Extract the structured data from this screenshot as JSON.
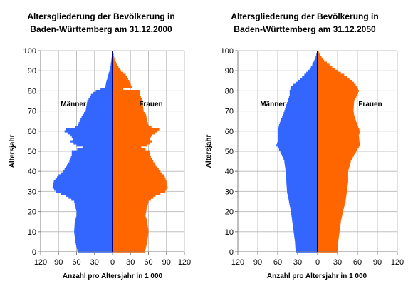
{
  "colors": {
    "men": "#3366ff",
    "women": "#ff6600",
    "axis": "#000080",
    "grid": "#c0c0c0"
  },
  "chart_data": [
    {
      "type": "bar",
      "orientation": "horizontal-pyramid",
      "title_line1": "Altersgliederung der Bevölkerung in",
      "title_line2": "Baden-Württemberg am 31.12.2000",
      "xlabel": "Anzahl pro Altersjahr in 1 000",
      "ylabel": "Altersjahr",
      "men_label": "Männer",
      "women_label": "Frauen",
      "xlim": [
        -120,
        120
      ],
      "ylim": [
        0,
        100
      ],
      "xticks": [
        120,
        90,
        60,
        30,
        0,
        30,
        60,
        90,
        120
      ],
      "yticks": [
        0,
        10,
        20,
        30,
        40,
        50,
        60,
        70,
        80,
        90,
        100
      ],
      "grid": true,
      "age_anchors": [
        0,
        5,
        10,
        15,
        18,
        20,
        25,
        28,
        30,
        32,
        35,
        38,
        40,
        42,
        45,
        48,
        50,
        52,
        53,
        54,
        55,
        56,
        58,
        60,
        61,
        62,
        63,
        65,
        68,
        70,
        75,
        78,
        80,
        81,
        82,
        85,
        88,
        90,
        93,
        95,
        98,
        100
      ],
      "men_values": [
        58,
        62,
        64,
        63,
        60,
        60,
        64,
        78,
        95,
        100,
        98,
        90,
        82,
        78,
        72,
        68,
        68,
        50,
        60,
        65,
        70,
        66,
        70,
        80,
        78,
        62,
        58,
        55,
        50,
        45,
        42,
        36,
        28,
        20,
        12,
        10,
        7,
        5,
        3,
        2,
        1,
        0
      ],
      "women_values": [
        54,
        58,
        60,
        58,
        55,
        56,
        60,
        72,
        88,
        92,
        90,
        86,
        80,
        74,
        68,
        62,
        62,
        48,
        58,
        62,
        66,
        62,
        66,
        75,
        78,
        65,
        60,
        58,
        56,
        52,
        50,
        46,
        46,
        18,
        32,
        28,
        22,
        14,
        8,
        4,
        2,
        0
      ]
    },
    {
      "type": "bar",
      "orientation": "horizontal-pyramid",
      "title_line1": "Altersgliederung der Bevölkerung in",
      "title_line2": "Baden-Württemberg am 31.12.2050",
      "xlabel": "Anzahl pro Altersjahr in 1 000",
      "ylabel": "Altersjahr",
      "men_label": "Männer",
      "women_label": "Frauen",
      "xlim": [
        -120,
        120
      ],
      "ylim": [
        0,
        100
      ],
      "xticks": [
        120,
        90,
        60,
        30,
        0,
        30,
        60,
        90,
        120
      ],
      "yticks": [
        0,
        10,
        20,
        30,
        40,
        50,
        60,
        70,
        80,
        90,
        100
      ],
      "grid": true,
      "age_anchors": [
        0,
        5,
        10,
        15,
        20,
        25,
        30,
        35,
        40,
        45,
        50,
        53,
        55,
        58,
        60,
        63,
        65,
        68,
        70,
        75,
        78,
        80,
        82,
        85,
        88,
        90,
        93,
        95,
        98,
        100
      ],
      "men_values": [
        33,
        34,
        36,
        38,
        40,
        43,
        46,
        47,
        48,
        50,
        56,
        62,
        60,
        60,
        60,
        58,
        56,
        52,
        50,
        45,
        42,
        42,
        40,
        30,
        20,
        14,
        8,
        5,
        2,
        0
      ],
      "women_values": [
        30,
        31,
        33,
        35,
        38,
        42,
        44,
        46,
        46,
        50,
        58,
        64,
        63,
        62,
        64,
        60,
        58,
        55,
        54,
        55,
        60,
        62,
        60,
        52,
        40,
        30,
        18,
        10,
        4,
        0
      ]
    }
  ]
}
